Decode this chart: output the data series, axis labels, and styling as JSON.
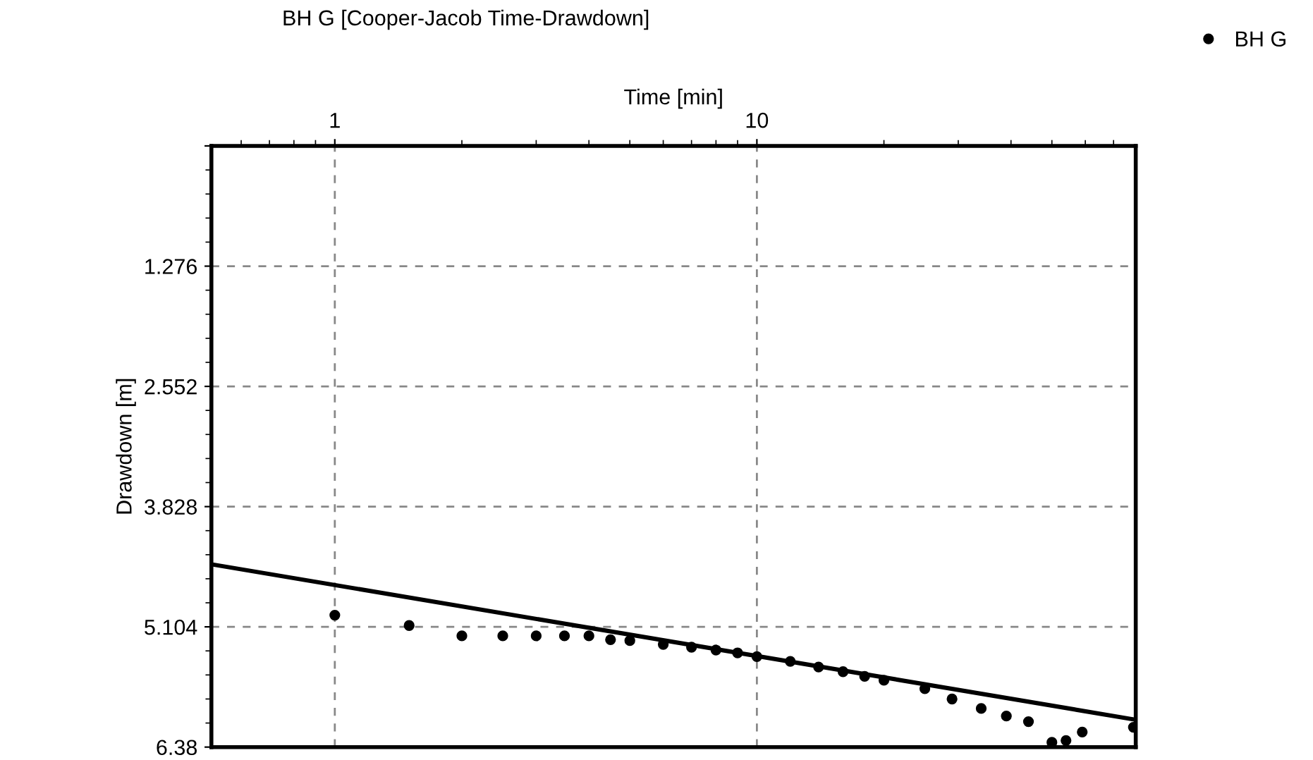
{
  "chart_data": {
    "type": "scatter",
    "title": "BH G [Cooper-Jacob Time-Drawdown]",
    "xlabel": "Time [min]",
    "ylabel": "Drawdown [m]",
    "log": "x",
    "xlim": [
      0.51,
      79
    ],
    "xticks": [
      1,
      10
    ],
    "ylim": [
      6.38,
      0
    ],
    "yticks": [
      {
        "value": 0,
        "label": null
      },
      1.276,
      2.552,
      3.828,
      5.104,
      6.38
    ],
    "grid": true,
    "legend": "top right",
    "marker": "circle",
    "series": [
      {
        "name": "BH G",
        "color": "#000000",
        "x": [
          1,
          1.5,
          2,
          2.5,
          3,
          3.5,
          4,
          4.5,
          5,
          6,
          7,
          8,
          9,
          10,
          12,
          14,
          16,
          18,
          20,
          25,
          29,
          34,
          39,
          44,
          50,
          54,
          59,
          78
        ],
        "values": [
          4.98,
          5.09,
          5.2,
          5.2,
          5.2,
          5.2,
          5.2,
          5.24,
          5.25,
          5.29,
          5.32,
          5.35,
          5.38,
          5.42,
          5.47,
          5.53,
          5.58,
          5.63,
          5.67,
          5.76,
          5.87,
          5.97,
          6.05,
          6.11,
          6.33,
          6.31,
          6.22,
          6.17
        ]
      },
      {
        "type": "line",
        "color": "#000000",
        "x": [
          0.51,
          79
        ],
        "values": [
          4.44,
          6.09
        ],
        "line_style": "solid",
        "marker": "none"
      }
    ]
  }
}
